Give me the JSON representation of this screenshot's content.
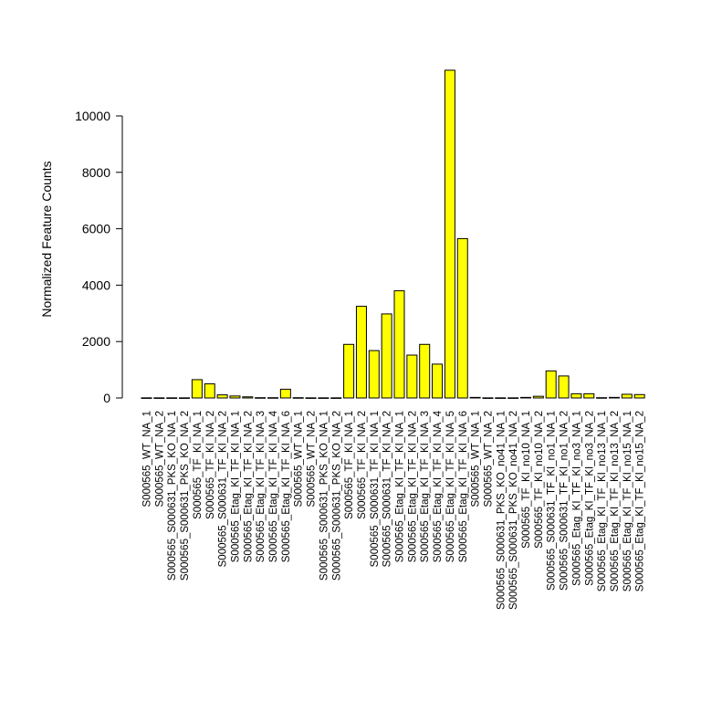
{
  "chart_data": {
    "type": "bar",
    "title": "",
    "xlabel": "",
    "ylabel": "Normalized Feature Counts",
    "ylim": [
      0,
      11600
    ],
    "yticks": [
      0,
      2000,
      4000,
      6000,
      8000,
      10000
    ],
    "bar_color": "#ffff00",
    "bar_edge_color": "#000000",
    "grid": false,
    "legend": "none",
    "categories": [
      "S000565_WT_NA_1",
      "S000565_WT_NA_2",
      "S000565_S000631_PKS_KO_NA_1",
      "S000565_S000631_PKS_KO_NA_2",
      "S000565_TF_KI_NA_1",
      "S000565_TF_KI_NA_2",
      "S000565_S000631_TF_KI_NA_2",
      "S000565_Etag_KI_TF_KI_NA_1",
      "S000565_Etag_KI_TF_KI_NA_2",
      "S000565_Etag_KI_TF_KI_NA_3",
      "S000565_Etag_KI_TF_KI_NA_4",
      "S000565_Etag_KI_TF_KI_NA_6",
      "S000565_WT_NA_1",
      "S000565_WT_NA_2",
      "S000565_S000631_PKS_KO_NA_1",
      "S000565_S000631_PKS_KO_NA_2",
      "S000565_TF_KI_NA_1",
      "S000565_TF_KI_NA_2",
      "S000565_S000631_TF_KI_NA_1",
      "S000565_S000631_TF_KI_NA_2",
      "S000565_Etag_KI_TF_KI_NA_1",
      "S000565_Etag_KI_TF_KI_NA_2",
      "S000565_Etag_KI_TF_KI_NA_3",
      "S000565_Etag_KI_TF_KI_NA_4",
      "S000565_Etag_KI_TF_KI_NA_5",
      "S000565_Etag_KI_TF_KI_NA_6",
      "S000565_WT_NA_1",
      "S000565_WT_NA_2",
      "S000565_S000631_PKS_KO_no41_NA_1",
      "S000565_S000631_PKS_KO_no41_NA_2",
      "S000565_TF_KI_no10_NA_1",
      "S000565_TF_KI_no10_NA_2",
      "S000565_S000631_TF_KI_no1_NA_1",
      "S000565_S000631_TF_KI_no1_NA_2",
      "S000565_Etag_KI_TF_KI_no3_NA_1",
      "S000565_Etag_KI_TF_KI_no3_NA_2",
      "S000565_Etag_KI_TF_KI_no13_NA_1",
      "S000565_Etag_KI_TF_KI_no13_NA_2",
      "S000565_Etag_KI_TF_KI_no15_NA_1",
      "S000565_Etag_KI_TF_KI_no15_NA_2"
    ],
    "values": [
      5,
      5,
      5,
      5,
      650,
      500,
      110,
      70,
      40,
      10,
      10,
      310,
      10,
      5,
      5,
      5,
      1900,
      3250,
      1680,
      2980,
      3800,
      1520,
      1900,
      1200,
      11620,
      5650,
      20,
      5,
      5,
      5,
      20,
      60,
      960,
      780,
      150,
      150,
      10,
      20,
      130,
      120
    ]
  }
}
